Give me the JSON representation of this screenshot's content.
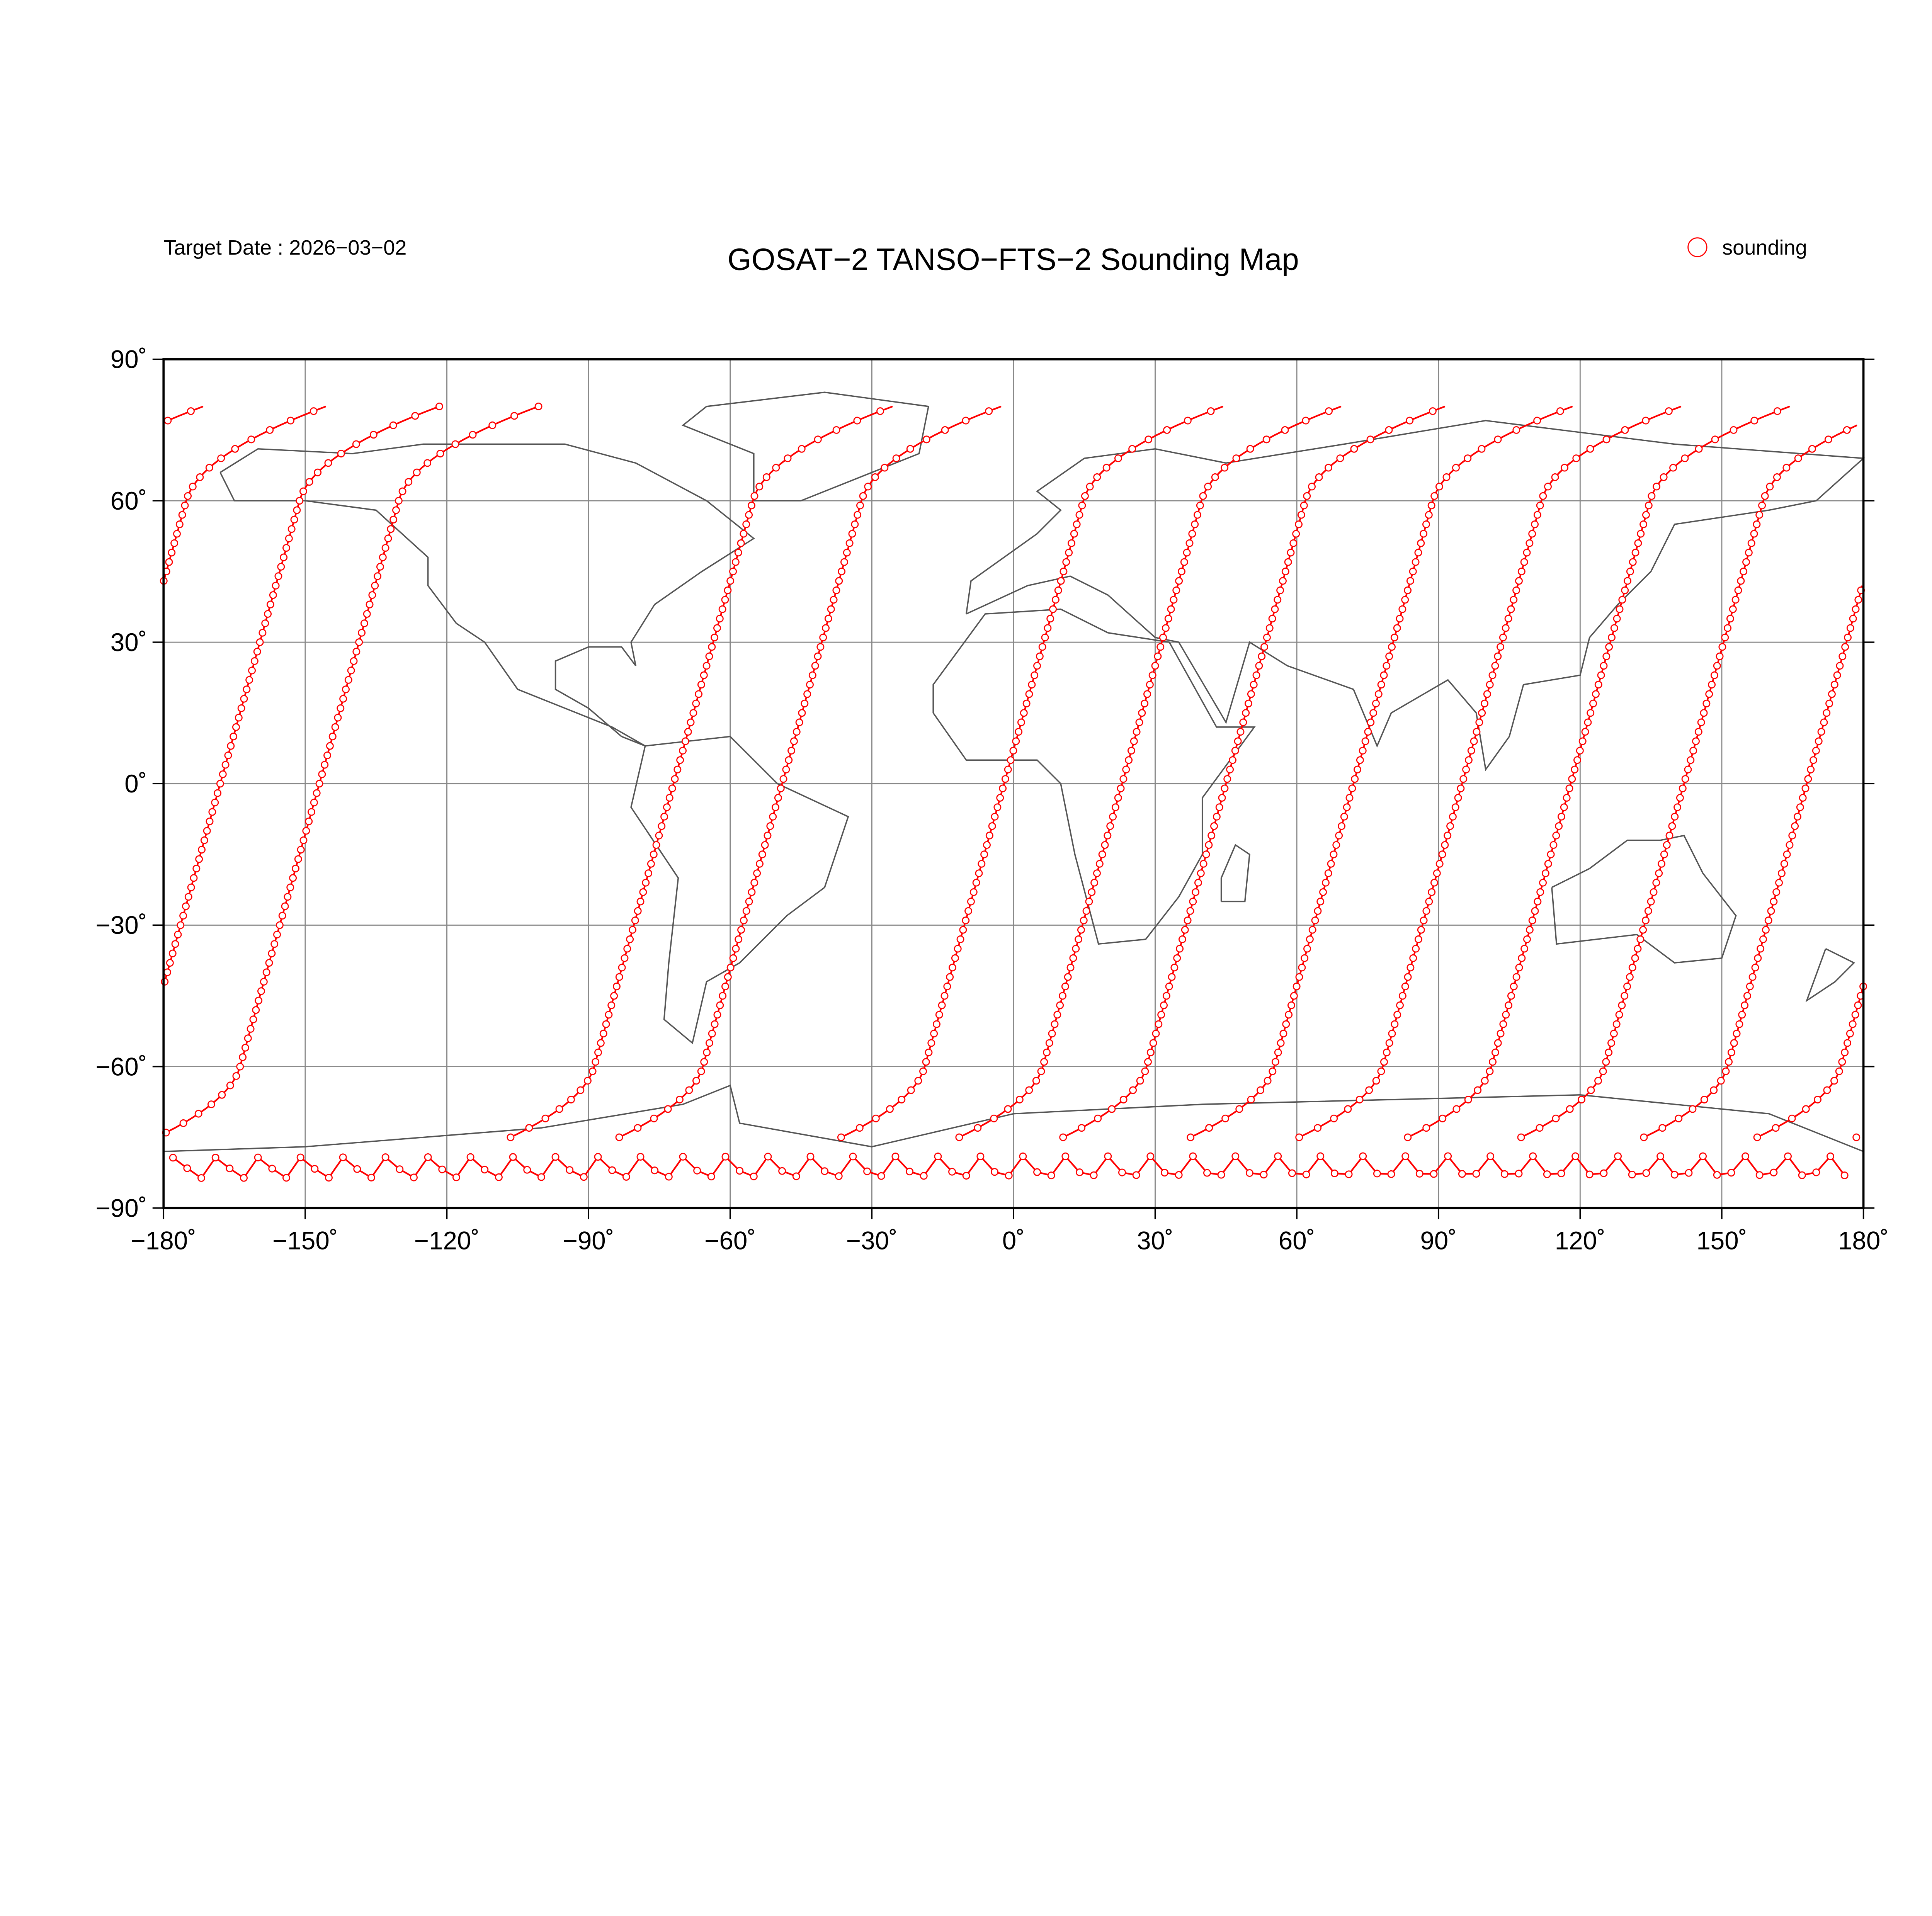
{
  "header": {
    "target_date": "Target Date : 2026−03−02",
    "title": "GOSAT−2 TANSO−FTS−2 Sounding Map",
    "legend_label": "sounding",
    "legend_icon": "open-circle"
  },
  "colors": {
    "sounding": "#ff0000",
    "coast": "#555555",
    "grid": "#888888"
  },
  "axes": {
    "x_ticks": [
      {
        "value": -180,
        "label": "−180˚"
      },
      {
        "value": -150,
        "label": "−150˚"
      },
      {
        "value": -120,
        "label": "−120˚"
      },
      {
        "value": -90,
        "label": "−90˚"
      },
      {
        "value": -60,
        "label": "−60˚"
      },
      {
        "value": -30,
        "label": "−30˚"
      },
      {
        "value": 0,
        "label": "0˚"
      },
      {
        "value": 30,
        "label": "30˚"
      },
      {
        "value": 60,
        "label": "60˚"
      },
      {
        "value": 90,
        "label": "90˚"
      },
      {
        "value": 120,
        "label": "120˚"
      },
      {
        "value": 150,
        "label": "150˚"
      },
      {
        "value": 180,
        "label": "180˚"
      }
    ],
    "y_ticks": [
      {
        "value": 90,
        "label": "90˚"
      },
      {
        "value": 60,
        "label": "60˚"
      },
      {
        "value": 30,
        "label": "30˚"
      },
      {
        "value": 0,
        "label": "0˚"
      },
      {
        "value": -30,
        "label": "−30˚"
      },
      {
        "value": -60,
        "label": "−60˚"
      },
      {
        "value": -90,
        "label": "−90˚"
      }
    ],
    "lon_range": [
      -180,
      180
    ],
    "lat_range": [
      -90,
      90
    ]
  },
  "tracks": {
    "equator_crossing_lon": [
      -168,
      -147,
      -72,
      -49,
      -2,
      23,
      45,
      72,
      95,
      118,
      142,
      168
    ],
    "lat_range": [
      -75,
      80
    ]
  }
}
